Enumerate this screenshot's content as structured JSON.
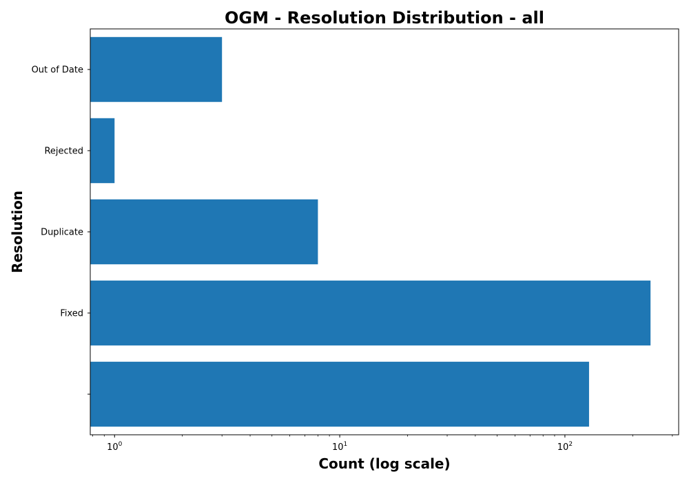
{
  "chart_data": {
    "type": "bar",
    "orientation": "horizontal",
    "title": "OGM - Resolution Distribution - all",
    "xlabel": "Count (log scale)",
    "ylabel": "Resolution",
    "x_scale": "log",
    "xlim": [
      0.78,
      320
    ],
    "x_ticks": [
      {
        "value": 1,
        "base": "10",
        "exp": "0"
      },
      {
        "value": 10,
        "base": "10",
        "exp": "1"
      },
      {
        "value": 100,
        "base": "10",
        "exp": "2"
      }
    ],
    "categories": [
      "",
      "Fixed",
      "Duplicate",
      "Rejected",
      "Out of Date"
    ],
    "values": [
      128,
      240,
      8,
      1,
      3
    ],
    "bar_color": "#1f77b4",
    "grid": false,
    "legend": "none"
  }
}
